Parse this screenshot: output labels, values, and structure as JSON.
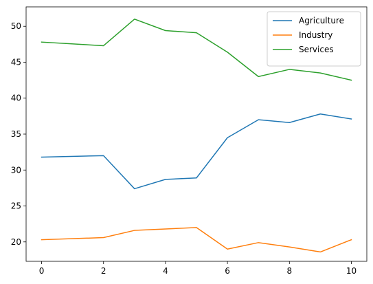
{
  "chart_data": {
    "type": "line",
    "x": [
      0,
      2,
      3,
      4,
      5,
      6,
      7,
      8,
      9,
      10
    ],
    "series": [
      {
        "name": "Agriculture",
        "color": "#1f77b4",
        "values": [
          31.8,
          32.0,
          27.4,
          28.7,
          28.9,
          34.5,
          37.0,
          36.6,
          37.8,
          37.1
        ]
      },
      {
        "name": "Industry",
        "color": "#ff7f0e",
        "values": [
          20.3,
          20.6,
          21.6,
          21.8,
          22.0,
          19.0,
          19.9,
          19.3,
          18.6,
          20.3
        ]
      },
      {
        "name": "Services",
        "color": "#2ca02c",
        "values": [
          47.8,
          47.3,
          51.0,
          49.4,
          49.1,
          46.4,
          43.0,
          44.0,
          43.5,
          42.5
        ]
      }
    ],
    "xlim": [
      -0.5,
      10.5
    ],
    "ylim": [
      17.3,
      52.7
    ],
    "xticks": [
      0,
      2,
      4,
      6,
      8,
      10
    ],
    "yticks": [
      20,
      25,
      30,
      35,
      40,
      45,
      50
    ],
    "legend": "top-right",
    "grid": false,
    "title": "",
    "xlabel": "",
    "ylabel": ""
  }
}
